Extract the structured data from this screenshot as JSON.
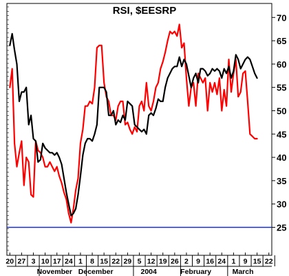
{
  "chart_data": {
    "type": "line",
    "title": "RSI, $EESRP",
    "xlabel": "",
    "ylabel": "",
    "ylim": [
      19,
      73
    ],
    "y_ticks": [
      25,
      30,
      35,
      40,
      45,
      50,
      55,
      60,
      65,
      70
    ],
    "x_tick_labels": [
      "20",
      "27",
      "3",
      "10",
      "17",
      "24",
      "1",
      "8",
      "15",
      "22",
      "29",
      "5",
      "12",
      "19",
      "26",
      "2",
      "9",
      "16",
      "24",
      "1",
      "9",
      "15",
      "22"
    ],
    "month_labels": [
      "November",
      "December",
      "2004",
      "February",
      "March"
    ],
    "reference_line": {
      "value": 25,
      "color": "#1b2fb5"
    },
    "x_range": [
      -0.25,
      22.25
    ],
    "series": [
      {
        "color": "#000000",
        "x": [
          0,
          0.2,
          0.4,
          0.6,
          0.8,
          1.0,
          1.2,
          1.4,
          1.6,
          1.8,
          2.0,
          2.2,
          2.4,
          2.6,
          2.8,
          3.0,
          3.2,
          3.4,
          3.6,
          3.8,
          4.0,
          4.2,
          4.4,
          4.6,
          4.8,
          5.0,
          5.2,
          5.4,
          5.6,
          5.8,
          6.0,
          6.2,
          6.4,
          6.6,
          6.8,
          7.0,
          7.2,
          7.4,
          7.6,
          7.8,
          8.0,
          8.2,
          8.4,
          8.6,
          8.8,
          9.0,
          9.2,
          9.4,
          9.6,
          9.8,
          10.0,
          10.2,
          10.4,
          10.6,
          10.8,
          11.0,
          11.2,
          11.4,
          11.6,
          11.8,
          12.0,
          12.2,
          12.4,
          12.6,
          12.8,
          13.0,
          13.2,
          13.4,
          13.6,
          13.8,
          14.0,
          14.2,
          14.4,
          14.6,
          14.8,
          15.0,
          15.2,
          15.4,
          15.6,
          15.8,
          16.0,
          16.2,
          16.4,
          16.6,
          16.8,
          17.0,
          17.2,
          17.4,
          17.6,
          17.8,
          18.0,
          18.2,
          18.4,
          18.6,
          18.8,
          19.0,
          19.2,
          19.4,
          19.6,
          19.8,
          20.0,
          20.2,
          20.4,
          20.6,
          20.8,
          21.0
        ],
        "values": [
          64,
          66.5,
          63,
          60,
          52,
          54,
          54,
          55,
          47,
          49,
          44,
          43.5,
          39,
          39.5,
          43,
          42,
          41.5,
          41,
          41,
          40.5,
          41,
          40,
          38.5,
          35.5,
          32.5,
          30,
          27.5,
          28,
          29,
          32,
          36,
          40.5,
          43,
          44,
          44,
          43.5,
          45,
          47,
          55,
          55,
          55,
          54,
          49,
          49,
          50,
          47,
          48,
          47.5,
          49,
          48,
          52,
          51.5,
          51,
          47,
          46.5,
          46,
          45.5,
          46,
          45,
          49,
          49.5,
          49,
          50.5,
          52.5,
          52,
          52,
          55,
          57,
          58,
          59,
          59.5,
          59.5,
          61.5,
          59.5,
          61,
          60,
          57.5,
          55,
          57,
          58,
          56,
          59,
          59,
          58.5,
          57.5,
          58,
          59,
          58.5,
          59,
          58.5,
          57,
          59,
          58,
          59.5,
          57,
          58.5,
          62,
          61,
          59,
          60,
          61,
          61.5,
          61,
          59.5,
          58,
          57
        ]
      },
      {
        "color": "#ff0000",
        "x": [
          0,
          0.2,
          0.4,
          0.6,
          0.8,
          1.0,
          1.2,
          1.4,
          1.6,
          1.8,
          2.0,
          2.2,
          2.4,
          2.6,
          2.8,
          3.0,
          3.2,
          3.4,
          3.6,
          3.8,
          4.0,
          4.2,
          4.4,
          4.6,
          4.8,
          5.0,
          5.2,
          5.4,
          5.6,
          5.8,
          6.0,
          6.2,
          6.4,
          6.6,
          6.8,
          7.0,
          7.2,
          7.4,
          7.6,
          7.8,
          8.0,
          8.2,
          8.4,
          8.6,
          8.8,
          9.0,
          9.2,
          9.4,
          9.6,
          9.8,
          10.0,
          10.2,
          10.4,
          10.6,
          10.8,
          11.0,
          11.2,
          11.4,
          11.6,
          11.8,
          12.0,
          12.2,
          12.4,
          12.6,
          12.8,
          13.0,
          13.2,
          13.4,
          13.6,
          13.8,
          14.0,
          14.2,
          14.4,
          14.6,
          14.8,
          15.0,
          15.2,
          15.4,
          15.6,
          15.8,
          16.0,
          16.2,
          16.4,
          16.6,
          16.8,
          17.0,
          17.2,
          17.4,
          17.6,
          17.8,
          18.0,
          18.2,
          18.4,
          18.6,
          18.8,
          19.0,
          19.2,
          19.4,
          19.6,
          19.8,
          20.0,
          20.2,
          20.4,
          20.6,
          20.8,
          21.0
        ],
        "values": [
          55,
          59,
          43,
          38,
          41,
          43.5,
          34,
          40,
          39,
          32,
          31.5,
          43.5,
          41.5,
          41,
          40,
          38,
          38,
          39,
          38,
          37,
          38,
          36,
          34.5,
          32.5,
          31,
          28,
          26,
          29,
          33,
          35.5,
          43,
          46,
          51,
          51,
          52,
          51.5,
          55,
          63.5,
          64,
          64,
          56,
          53,
          52,
          49,
          49,
          48,
          51,
          52,
          52,
          47,
          47.5,
          46,
          45,
          46.5,
          45.5,
          51,
          52,
          50,
          56,
          51,
          50,
          52,
          55,
          56,
          59,
          60.5,
          62.5,
          65,
          67,
          66.5,
          67,
          66,
          68.5,
          63.5,
          64.5,
          57,
          51,
          55,
          56,
          51,
          58,
          57,
          56,
          57,
          50,
          56,
          54,
          56,
          53.5,
          57,
          50,
          54.5,
          51,
          61,
          54,
          58,
          61,
          53,
          54,
          58,
          58.5,
          52,
          45,
          44.5,
          44,
          44
        ]
      }
    ]
  }
}
